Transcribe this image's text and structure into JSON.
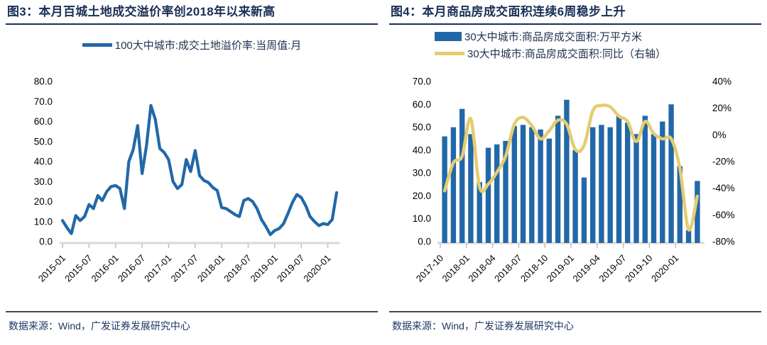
{
  "accent_colors": {
    "blue": "#2268A8",
    "yellow": "#E6CC70",
    "navy_title": "#1A2F55",
    "navy_text": "#1F3864",
    "axis_line": "#D9D9D9",
    "tick": "#BFBFBF",
    "axis_label": "#000000"
  },
  "chart_data": [
    {
      "type": "line",
      "title": "图3：本月百城土地成交溢价率创2018年以来新高",
      "legend": [
        "100大中城市:成交土地溢价率:当周值:月"
      ],
      "source": "数据来源：Wind，广发证券发展研究中心",
      "line_color": "#2268A8",
      "grid": false,
      "legend_position": "top-center",
      "ylim": [
        0,
        80
      ],
      "y_tick_labels": [
        "80.0",
        "70.0",
        "60.0",
        "50.0",
        "40.0",
        "30.0",
        "20.0",
        "10.0",
        "0.0"
      ],
      "x_tick_every": 6,
      "x_tick_labels": [
        "2015-01",
        "2015-07",
        "2016-01",
        "2016-07",
        "2017-01",
        "2017-07",
        "2018-01",
        "2018-07",
        "2019-01",
        "2019-07",
        "2020-01"
      ],
      "x": [
        "2015-01",
        "2015-02",
        "2015-03",
        "2015-04",
        "2015-05",
        "2015-06",
        "2015-07",
        "2015-08",
        "2015-09",
        "2015-10",
        "2015-11",
        "2015-12",
        "2016-01",
        "2016-02",
        "2016-03",
        "2016-04",
        "2016-05",
        "2016-06",
        "2016-07",
        "2016-08",
        "2016-09",
        "2016-10",
        "2016-11",
        "2016-12",
        "2017-01",
        "2017-02",
        "2017-03",
        "2017-04",
        "2017-05",
        "2017-06",
        "2017-07",
        "2017-08",
        "2017-09",
        "2017-10",
        "2017-11",
        "2017-12",
        "2018-01",
        "2018-02",
        "2018-03",
        "2018-04",
        "2018-05",
        "2018-06",
        "2018-07",
        "2018-08",
        "2018-09",
        "2018-10",
        "2018-11",
        "2018-12",
        "2019-01",
        "2019-02",
        "2019-03",
        "2019-04",
        "2019-05",
        "2019-06",
        "2019-07",
        "2019-08",
        "2019-09",
        "2019-10",
        "2019-11",
        "2019-12",
        "2020-01",
        "2020-02",
        "2020-03"
      ],
      "values": [
        10.5,
        7,
        4,
        13,
        10.5,
        12.5,
        18.5,
        16.5,
        23,
        20.5,
        25,
        27.5,
        28,
        26.5,
        16.5,
        40,
        46,
        58,
        34,
        48,
        68,
        61,
        46.5,
        44.5,
        41,
        30,
        26.5,
        28.5,
        41,
        35,
        45.5,
        33,
        30.5,
        29.5,
        27,
        25.5,
        17,
        16.5,
        15,
        13.5,
        12.5,
        20.5,
        21.5,
        20,
        16.5,
        11,
        7.5,
        3.5,
        5.5,
        6.5,
        9,
        14,
        19.5,
        23.5,
        22,
        18,
        12.5,
        10,
        8,
        9,
        8.5,
        11,
        24.5
      ]
    },
    {
      "type": "bar+line",
      "title": "图4：本月商品房成交面积连续6周稳步上升",
      "source": "数据来源：Wind，广发证券发展研究中心",
      "grid": false,
      "legend_position": "top-left",
      "left_ylim": [
        0,
        70
      ],
      "right_ylim": [
        -80,
        40
      ],
      "left_tick_labels": [
        "70.0",
        "60.0",
        "50.0",
        "40.0",
        "30.0",
        "20.0",
        "10.0",
        "0.0"
      ],
      "right_tick_labels": [
        "40%",
        "20%",
        "0%",
        "-20%",
        "-40%",
        "-60%",
        "-80%"
      ],
      "x_tick_every": 3,
      "x_tick_labels": [
        "2017-10",
        "2018-01",
        "2018-04",
        "2018-07",
        "2018-10",
        "2019-01",
        "2019-04",
        "2019-07",
        "2019-10",
        "2020-01"
      ],
      "categories": [
        "2017-10",
        "2017-11",
        "2017-12",
        "2018-01",
        "2018-02",
        "2018-03",
        "2018-04",
        "2018-05",
        "2018-06",
        "2018-07",
        "2018-08",
        "2018-09",
        "2018-10",
        "2018-11",
        "2018-12",
        "2019-01",
        "2019-02",
        "2019-03",
        "2019-04",
        "2019-05",
        "2019-06",
        "2019-07",
        "2019-08",
        "2019-09",
        "2019-10",
        "2019-11",
        "2019-12",
        "2020-01",
        "2020-02",
        "2020-03"
      ],
      "series": [
        {
          "name": "30大中城市:商品房成交面积:万平方米",
          "type": "bar",
          "axis": "left",
          "color": "#2268A8",
          "values": [
            46,
            50,
            58,
            47,
            26,
            41,
            42.5,
            44,
            50.5,
            51,
            50,
            49,
            45,
            55,
            62,
            40,
            28,
            50,
            51,
            50,
            55,
            52,
            47,
            55,
            47,
            52.5,
            60,
            33,
            5,
            26.5
          ]
        },
        {
          "name": "30大中城市:商品房成交面积:同比（右轴）",
          "type": "line",
          "axis": "right",
          "color": "#E6CC70",
          "values": [
            -42,
            -21,
            -16,
            12,
            -39,
            -37,
            -28,
            -16,
            8,
            13,
            7,
            -3,
            3,
            11,
            8,
            -11,
            -8,
            18,
            22,
            21,
            14,
            10,
            -5,
            10,
            1,
            -3,
            -3,
            -25,
            -71,
            -46
          ]
        }
      ]
    }
  ]
}
